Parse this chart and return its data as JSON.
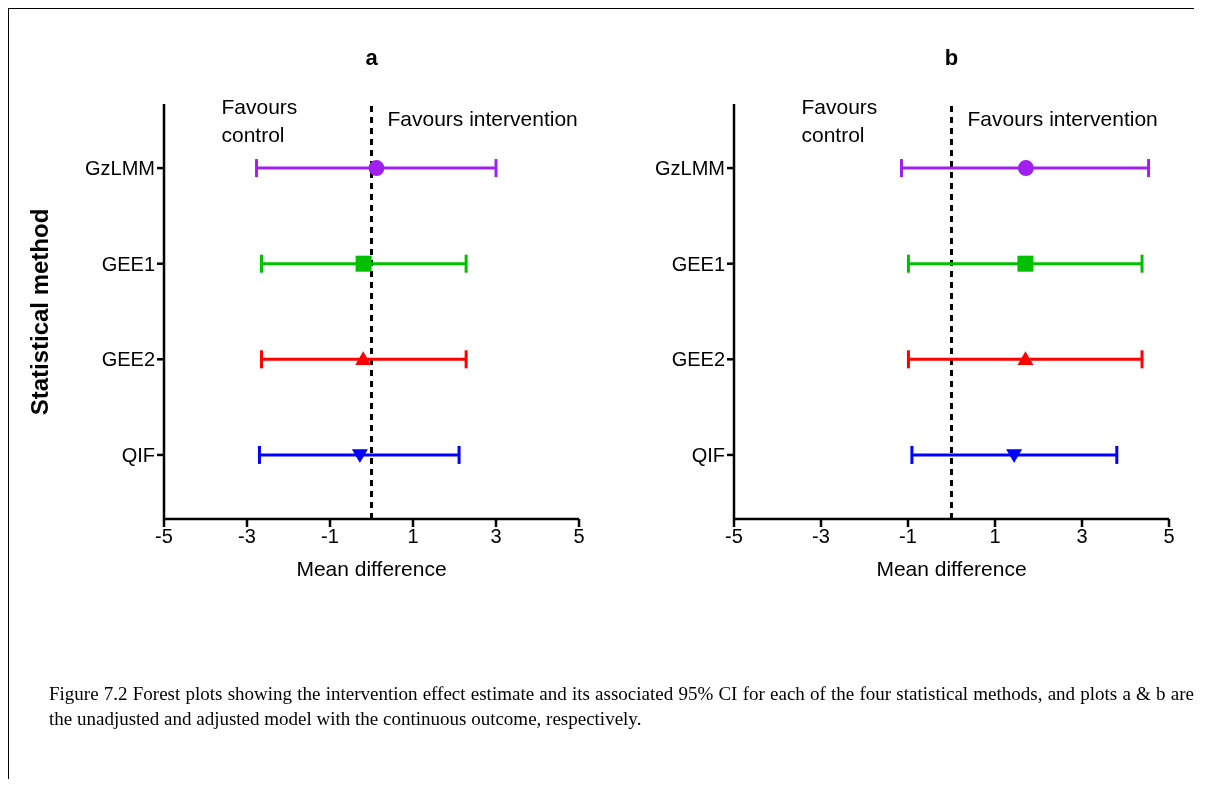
{
  "chart_data": [
    {
      "type": "scatter",
      "orientation": "horizontal",
      "title": "a",
      "xlabel": "Mean difference",
      "ylabel": "Statistical method",
      "categories": [
        "GzLMM",
        "GEE1",
        "GEE2",
        "QIF"
      ],
      "series": [
        {
          "color": "#a020f0",
          "marker": "circle",
          "values": [
            0.12,
            null,
            null,
            null
          ],
          "errors": [
            [
              -2.77,
              3.0
            ],
            null,
            null,
            null
          ]
        },
        {
          "color": "#00c000",
          "marker": "square",
          "values": [
            null,
            -0.19,
            null,
            null
          ],
          "errors": [
            null,
            [
              -2.65,
              2.28
            ],
            null,
            null
          ]
        },
        {
          "color": "#ff0000",
          "marker": "triangle",
          "values": [
            null,
            null,
            -0.2,
            null
          ],
          "errors": [
            null,
            null,
            [
              -2.65,
              2.28
            ],
            null
          ]
        },
        {
          "color": "#0000ff",
          "marker": "triangle-down",
          "values": [
            null,
            null,
            null,
            -0.28
          ],
          "errors": [
            null,
            null,
            null,
            [
              -2.7,
              2.11
            ]
          ]
        }
      ],
      "xlim": [
        -5,
        5
      ],
      "xticks": [
        -5,
        -3,
        -1,
        1,
        3,
        5
      ],
      "ref_lines": [
        {
          "axis": "x",
          "value": 0,
          "color": "#000000",
          "line_style": "dashed"
        }
      ],
      "annotations": [
        "Favours control",
        "Favours intervention"
      ]
    },
    {
      "type": "scatter",
      "orientation": "horizontal",
      "title": "b",
      "xlabel": "Mean difference",
      "categories": [
        "GzLMM",
        "GEE1",
        "GEE2",
        "QIF"
      ],
      "series": [
        {
          "color": "#a020f0",
          "marker": "circle",
          "values": [
            1.71,
            null,
            null,
            null
          ],
          "errors": [
            [
              -1.15,
              4.53
            ],
            null,
            null,
            null
          ]
        },
        {
          "color": "#00c000",
          "marker": "square",
          "values": [
            null,
            1.7,
            null,
            null
          ],
          "errors": [
            null,
            [
              -0.99,
              4.38
            ],
            null,
            null
          ]
        },
        {
          "color": "#ff0000",
          "marker": "triangle",
          "values": [
            null,
            null,
            1.7,
            null
          ],
          "errors": [
            null,
            null,
            [
              -0.99,
              4.38
            ],
            null
          ]
        },
        {
          "color": "#0000ff",
          "marker": "triangle-down",
          "values": [
            null,
            null,
            null,
            1.44
          ],
          "errors": [
            null,
            null,
            null,
            [
              -0.91,
              3.8
            ]
          ]
        }
      ],
      "xlim": [
        -5,
        5
      ],
      "xticks": [
        -5,
        -3,
        -1,
        1,
        3,
        5
      ],
      "ref_lines": [
        {
          "axis": "x",
          "value": 0,
          "color": "#000000",
          "line_style": "dashed"
        }
      ],
      "annotations": [
        "Favours control",
        "Favours intervention",
        "Figure 7.2 Forest plots showing the intervention effect estimate and its associated 95% CI for each of the four statistical methods, and plots a & b are the unadjusted and adjusted model with the continuous outcome, respectively."
      ]
    }
  ]
}
